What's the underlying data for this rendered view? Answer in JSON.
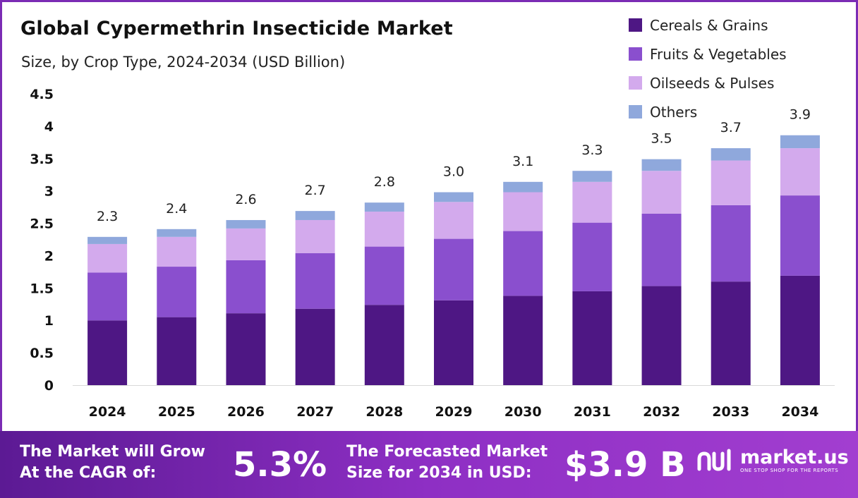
{
  "chart_data": {
    "type": "bar",
    "stacked": true,
    "title": "Global Cypermethrin Insecticide Market",
    "subtitle": "Size, by Crop Type, 2024-2034 (USD Billion)",
    "categories": [
      "2024",
      "2025",
      "2026",
      "2027",
      "2028",
      "2029",
      "2030",
      "2031",
      "2032",
      "2033",
      "2034"
    ],
    "series": [
      {
        "name": "Cereals & Grains",
        "color": "#4e1784",
        "values": [
          1.0,
          1.05,
          1.11,
          1.18,
          1.24,
          1.31,
          1.38,
          1.45,
          1.53,
          1.6,
          1.69
        ]
      },
      {
        "name": "Fruits & Vegetables",
        "color": "#8a4fce",
        "values": [
          0.74,
          0.78,
          0.82,
          0.86,
          0.9,
          0.95,
          1.0,
          1.06,
          1.12,
          1.18,
          1.24
        ]
      },
      {
        "name": "Oilseeds & Pulses",
        "color": "#d3aaed",
        "values": [
          0.44,
          0.46,
          0.49,
          0.51,
          0.54,
          0.57,
          0.6,
          0.63,
          0.66,
          0.69,
          0.73
        ]
      },
      {
        "name": "Others",
        "color": "#8fa8dc",
        "values": [
          0.11,
          0.12,
          0.13,
          0.14,
          0.14,
          0.15,
          0.16,
          0.17,
          0.18,
          0.19,
          0.2
        ]
      }
    ],
    "totals": [
      "2.3",
      "2.4",
      "2.6",
      "2.7",
      "2.8",
      "3.0",
      "3.1",
      "3.3",
      "3.5",
      "3.7",
      "3.9"
    ],
    "ylim": [
      0,
      4.5
    ],
    "yticks": [
      "0",
      "0.5",
      "1",
      "1.5",
      "2",
      "2.5",
      "3",
      "3.5",
      "4",
      "4.5"
    ],
    "grid": false,
    "legend_position": "top-right"
  },
  "footer": {
    "cagr_label_line1": "The Market will Grow",
    "cagr_label_line2": "At the CAGR of:",
    "cagr_value": "5.3%",
    "forecast_label_line1": "The Forecasted Market",
    "forecast_label_line2": "Size for 2034 in USD:",
    "forecast_value": "$3.9 B",
    "brand_name": "market.us",
    "brand_tagline": "ONE STOP SHOP FOR THE REPORTS",
    "logo_icon": "market-us-logo-icon"
  }
}
